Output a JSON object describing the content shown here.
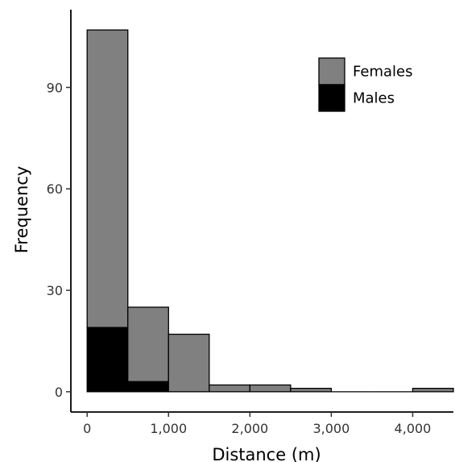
{
  "chart_data": {
    "type": "bar",
    "stacked": true,
    "title": "",
    "xlabel": "Distance (m)",
    "ylabel": "Frequency",
    "bins": [
      {
        "x0": 0,
        "x1": 500
      },
      {
        "x0": 500,
        "x1": 1000
      },
      {
        "x0": 1000,
        "x1": 1500
      },
      {
        "x0": 1500,
        "x1": 2000
      },
      {
        "x0": 2000,
        "x1": 2500
      },
      {
        "x0": 2500,
        "x1": 3000
      },
      {
        "x0": 3000,
        "x1": 3500
      },
      {
        "x0": 3500,
        "x1": 4000
      },
      {
        "x0": 4000,
        "x1": 4500
      }
    ],
    "series": [
      {
        "name": "Males",
        "color": "#000000",
        "values": [
          19,
          3,
          0,
          0,
          0,
          0,
          0,
          0,
          0
        ]
      },
      {
        "name": "Females",
        "color": "#808080",
        "values": [
          88,
          22,
          17,
          2,
          2,
          1,
          0,
          0,
          1
        ]
      }
    ],
    "xlim": [
      -200,
      4500
    ],
    "ylim": [
      -6,
      113
    ],
    "x_ticks": [
      {
        "value": 0,
        "label": "0"
      },
      {
        "value": 1000,
        "label": "1,000"
      },
      {
        "value": 2000,
        "label": "2,000"
      },
      {
        "value": 3000,
        "label": "3,000"
      },
      {
        "value": 4000,
        "label": "4,000"
      }
    ],
    "y_ticks": [
      {
        "value": 0,
        "label": "0"
      },
      {
        "value": 30,
        "label": "30"
      },
      {
        "value": 60,
        "label": "60"
      },
      {
        "value": 90,
        "label": "90"
      }
    ],
    "legend": {
      "position": "top-right",
      "entries": [
        {
          "label": "Females",
          "color": "#808080"
        },
        {
          "label": "Males",
          "color": "#000000"
        }
      ]
    },
    "grid": false
  }
}
